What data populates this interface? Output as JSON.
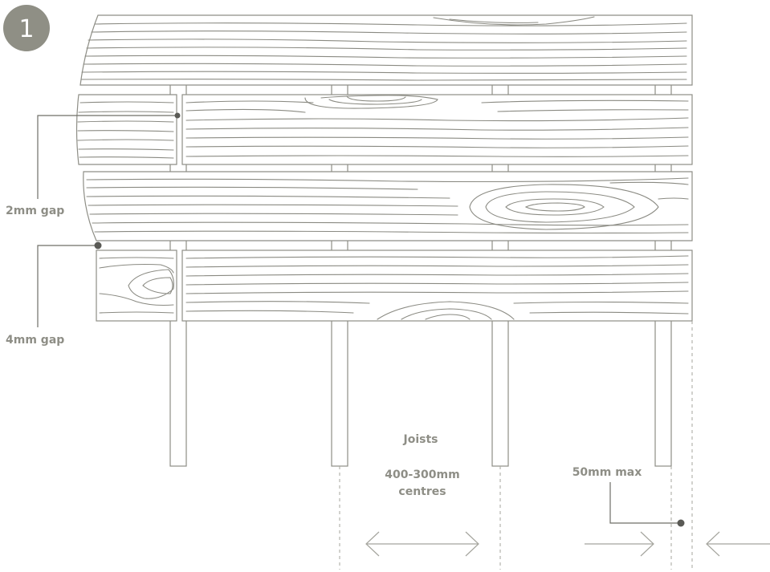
{
  "step_badge": {
    "number": "1",
    "color": "#8f8f85"
  },
  "labels": {
    "gap_small": "2mm gap",
    "gap_large": "4mm gap",
    "joists": "Joists",
    "centres_line1": "400-300mm",
    "centres_line2": "centres",
    "overhang": "50mm max"
  },
  "colors": {
    "line": "#8e8e86",
    "grain": "#8a8a82",
    "text": "#8e8e86",
    "dot": "#5a5a55"
  }
}
